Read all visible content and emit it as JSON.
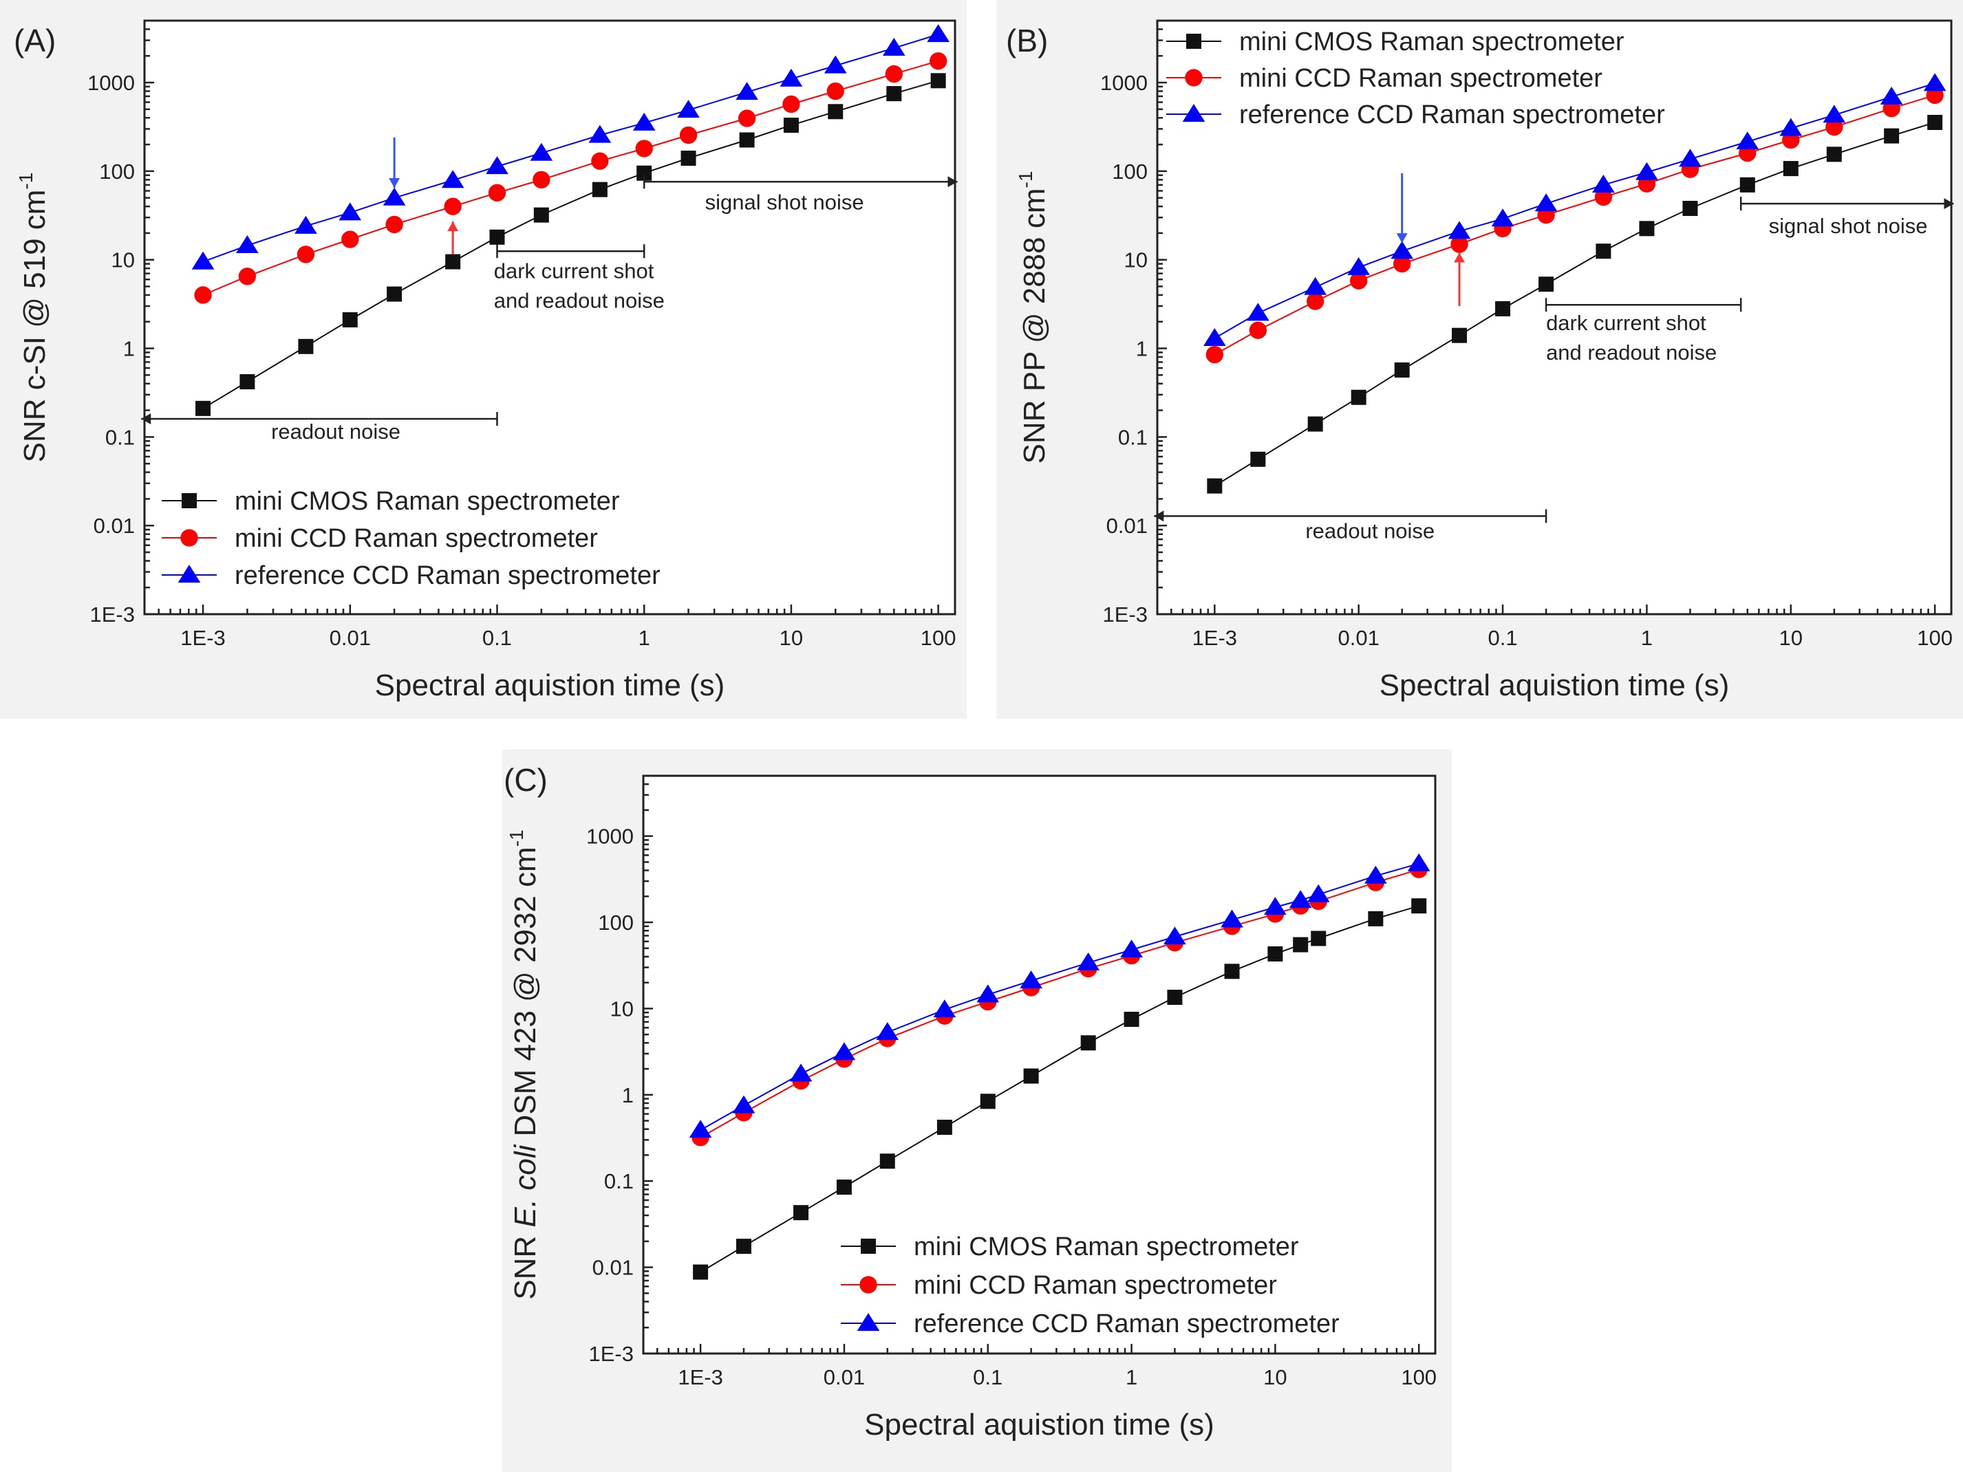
{
  "colors": {
    "cmos": "#111111",
    "ccd": "#ff0000",
    "ref": "#0000ff",
    "arrow_blue": "#3355ff",
    "arrow_red": "#ff3333"
  },
  "legend_entries": [
    "mini CMOS Raman spectrometer",
    "mini CCD Raman spectrometer",
    "reference CCD Raman spectrometer"
  ],
  "chart_data": [
    {
      "id": "A",
      "type": "line",
      "panel_label": "(A)",
      "title": "",
      "xlabel": "Spectral aquistion time (s)",
      "ylabel_parts": {
        "pre": "SNR c-SI @ 519 cm",
        "sup": "-1",
        "post": ""
      },
      "xscale": "log",
      "yscale": "log",
      "xlim": [
        0.0004,
        130
      ],
      "ylim": [
        0.001,
        5000
      ],
      "xticks": [
        0.001,
        0.01,
        0.1,
        1,
        10,
        100
      ],
      "xtick_labels": [
        "1E-3",
        "0.01",
        "0.1",
        "1",
        "10",
        "100"
      ],
      "yticks": [
        0.001,
        0.01,
        0.1,
        1,
        10,
        100,
        1000
      ],
      "ytick_labels": [
        "1E-3",
        "0.01",
        "0.1",
        "1",
        "10",
        "100",
        "1000"
      ],
      "legend_position": "lower-left",
      "series": [
        {
          "name": "mini CMOS Raman spectrometer",
          "key": "cmos",
          "marker": "square",
          "x": [
            0.001,
            0.002,
            0.005,
            0.01,
            0.02,
            0.05,
            0.1,
            0.2,
            0.5,
            1,
            2,
            5,
            10,
            20,
            50,
            100
          ],
          "values": [
            0.21,
            0.42,
            1.05,
            2.1,
            4.1,
            9.5,
            18,
            32,
            62,
            95,
            140,
            225,
            330,
            470,
            750,
            1050
          ]
        },
        {
          "name": "mini CCD Raman spectrometer",
          "key": "ccd",
          "marker": "circle",
          "x": [
            0.001,
            0.002,
            0.005,
            0.01,
            0.02,
            0.05,
            0.1,
            0.2,
            0.5,
            1,
            2,
            5,
            10,
            20,
            50,
            100
          ],
          "values": [
            4,
            6.5,
            11.5,
            17,
            25,
            40,
            57,
            80,
            130,
            180,
            255,
            395,
            570,
            800,
            1250,
            1750
          ]
        },
        {
          "name": "reference CCD Raman spectrometer",
          "key": "ref",
          "marker": "triangle",
          "x": [
            0.001,
            0.002,
            0.005,
            0.01,
            0.02,
            0.05,
            0.1,
            0.2,
            0.5,
            1,
            2,
            5,
            10,
            20,
            50,
            100
          ],
          "values": [
            9.5,
            14.5,
            24,
            34,
            50,
            79,
            113,
            160,
            255,
            350,
            490,
            780,
            1100,
            1550,
            2450,
            3500
          ]
        }
      ],
      "annotations": [
        {
          "kind": "hbar",
          "arrow": "left",
          "x1": 0.00038,
          "x2": 0.1,
          "y": 0.16,
          "text": "readout noise",
          "text_lines": [
            "readout noise"
          ],
          "tx": 0.008,
          "ty": 0.095,
          "anchor": "middle"
        },
        {
          "kind": "hbar",
          "arrow": "none",
          "x1": 0.1,
          "x2": 1,
          "y": 12.5,
          "text": "",
          "text_lines": [],
          "tx": 0,
          "ty": 0,
          "anchor": "middle"
        },
        {
          "kind": "text",
          "text_lines": [
            "dark current shot",
            "and readout noise"
          ],
          "tx": 0.095,
          "ty": 6.2,
          "anchor": "start"
        },
        {
          "kind": "hbar",
          "arrow": "right",
          "x1": 1,
          "x2": 135,
          "y": 76,
          "text": "",
          "text_lines": [],
          "tx": 0,
          "ty": 0,
          "anchor": "middle"
        },
        {
          "kind": "text",
          "text_lines": [
            "signal shot noise"
          ],
          "tx": 9,
          "ty": 37,
          "anchor": "middle"
        },
        {
          "kind": "varrow",
          "dir": "down",
          "color": "arrow_blue",
          "x": 0.02,
          "y1": 240,
          "y2": 65
        },
        {
          "kind": "varrow",
          "dir": "up",
          "color": "arrow_red",
          "x": 0.05,
          "y1": 11.5,
          "y2": 27
        }
      ]
    },
    {
      "id": "B",
      "type": "line",
      "panel_label": "(B)",
      "title": "",
      "xlabel": "Spectral aquistion time (s)",
      "ylabel_parts": {
        "pre": "SNR PP @ 2888 cm",
        "sup": "-1",
        "post": ""
      },
      "xscale": "log",
      "yscale": "log",
      "xlim": [
        0.0004,
        130
      ],
      "ylim": [
        0.001,
        5000
      ],
      "xticks": [
        0.001,
        0.01,
        0.1,
        1,
        10,
        100
      ],
      "xtick_labels": [
        "1E-3",
        "0.01",
        "0.1",
        "1",
        "10",
        "100"
      ],
      "yticks": [
        0.001,
        0.01,
        0.1,
        1,
        10,
        100,
        1000
      ],
      "ytick_labels": [
        "1E-3",
        "0.01",
        "0.1",
        "1",
        "10",
        "100",
        "1000"
      ],
      "legend_position": "top-left",
      "series": [
        {
          "name": "mini CMOS Raman spectrometer",
          "key": "cmos",
          "marker": "square",
          "x": [
            0.001,
            0.002,
            0.005,
            0.01,
            0.02,
            0.05,
            0.1,
            0.2,
            0.5,
            1,
            2,
            5,
            10,
            20,
            50,
            100
          ],
          "values": [
            0.028,
            0.056,
            0.14,
            0.28,
            0.57,
            1.4,
            2.8,
            5.3,
            12.5,
            22.5,
            38,
            70,
            107,
            155,
            250,
            355
          ]
        },
        {
          "name": "mini CCD Raman spectrometer",
          "key": "ccd",
          "marker": "circle",
          "x": [
            0.001,
            0.002,
            0.005,
            0.01,
            0.02,
            0.05,
            0.1,
            0.2,
            0.5,
            1,
            2,
            5,
            10,
            20,
            50,
            100
          ],
          "values": [
            0.85,
            1.6,
            3.4,
            5.8,
            9,
            15,
            22.5,
            32,
            51,
            72,
            105,
            160,
            225,
            315,
            510,
            720
          ]
        },
        {
          "name": "reference CCD Raman spectrometer",
          "key": "ref",
          "marker": "triangle",
          "x": [
            0.001,
            0.002,
            0.005,
            0.01,
            0.02,
            0.05,
            0.1,
            0.2,
            0.5,
            1,
            2,
            5,
            10,
            20,
            50,
            100
          ],
          "values": [
            1.3,
            2.5,
            4.9,
            8.2,
            12.5,
            21,
            29,
            43,
            70,
            97,
            137,
            215,
            305,
            430,
            690,
            980
          ]
        }
      ],
      "annotations": [
        {
          "kind": "hbar",
          "arrow": "left",
          "x1": 0.00038,
          "x2": 0.2,
          "y": 0.0128,
          "text": "",
          "text_lines": [],
          "tx": 0,
          "ty": 0,
          "anchor": "middle"
        },
        {
          "kind": "text",
          "text_lines": [
            "readout noise"
          ],
          "tx": 0.012,
          "ty": 0.0072,
          "anchor": "middle"
        },
        {
          "kind": "hbar",
          "arrow": "none",
          "x1": 0.2,
          "x2": 4.5,
          "y": 3.1,
          "text": "",
          "text_lines": [],
          "tx": 0,
          "ty": 0,
          "anchor": "middle"
        },
        {
          "kind": "text",
          "text_lines": [
            "dark current shot",
            "and readout noise"
          ],
          "tx": 0.2,
          "ty": 1.6,
          "anchor": "start"
        },
        {
          "kind": "hbar",
          "arrow": "right",
          "x1": 4.5,
          "x2": 135,
          "y": 43,
          "text": "",
          "text_lines": [],
          "tx": 0,
          "ty": 0,
          "anchor": "middle"
        },
        {
          "kind": "text",
          "text_lines": [
            "signal shot noise"
          ],
          "tx": 25,
          "ty": 20,
          "anchor": "middle"
        },
        {
          "kind": "varrow",
          "dir": "down",
          "color": "arrow_blue",
          "x": 0.02,
          "y1": 95,
          "y2": 15.5
        },
        {
          "kind": "varrow",
          "dir": "up",
          "color": "arrow_red",
          "x": 0.05,
          "y1": 3.0,
          "y2": 12
        }
      ]
    },
    {
      "id": "C",
      "type": "line",
      "panel_label": "(C)",
      "title": "",
      "xlabel": "Spectral aquistion time (s)",
      "ylabel_parts": {
        "pre": "SNR ",
        "italic": "E. coli",
        "mid": " DSM 423 @ 2932 cm",
        "sup": "-1"
      },
      "xscale": "log",
      "yscale": "log",
      "xlim": [
        0.0004,
        130
      ],
      "ylim": [
        0.001,
        5000
      ],
      "xticks": [
        0.001,
        0.01,
        0.1,
        1,
        10,
        100
      ],
      "xtick_labels": [
        "1E-3",
        "0.01",
        "0.1",
        "1",
        "10",
        "100"
      ],
      "yticks": [
        0.001,
        0.01,
        0.1,
        1,
        10,
        100,
        1000
      ],
      "ytick_labels": [
        "1E-3",
        "0.01",
        "0.1",
        "1",
        "10",
        "100",
        "1000"
      ],
      "legend_position": "lower-right",
      "series": [
        {
          "name": "mini CMOS Raman spectrometer",
          "key": "cmos",
          "marker": "square",
          "x": [
            0.001,
            0.002,
            0.005,
            0.01,
            0.02,
            0.05,
            0.1,
            0.2,
            0.5,
            1,
            2,
            5,
            10,
            15,
            20,
            50,
            100
          ],
          "values": [
            0.0088,
            0.0175,
            0.043,
            0.085,
            0.17,
            0.42,
            0.84,
            1.65,
            4.0,
            7.5,
            13.5,
            27,
            43,
            55,
            65,
            110,
            155
          ]
        },
        {
          "name": "mini CCD Raman spectrometer",
          "key": "ccd",
          "marker": "circle",
          "x": [
            0.001,
            0.002,
            0.005,
            0.01,
            0.02,
            0.05,
            0.1,
            0.2,
            0.5,
            1,
            2,
            5,
            10,
            15,
            20,
            50,
            100
          ],
          "values": [
            0.32,
            0.62,
            1.45,
            2.6,
            4.5,
            8.2,
            12,
            17.5,
            29,
            41,
            58,
            90,
            125,
            155,
            175,
            290,
            410
          ]
        },
        {
          "name": "reference CCD Raman spectrometer",
          "key": "ref",
          "marker": "triangle",
          "x": [
            0.001,
            0.002,
            0.005,
            0.01,
            0.02,
            0.05,
            0.1,
            0.2,
            0.5,
            1,
            2,
            5,
            10,
            15,
            20,
            50,
            100
          ],
          "values": [
            0.39,
            0.75,
            1.75,
            3.1,
            5.3,
            9.7,
            14.5,
            21,
            34,
            48,
            68,
            107,
            150,
            180,
            210,
            345,
            480
          ]
        }
      ],
      "annotations": []
    }
  ]
}
